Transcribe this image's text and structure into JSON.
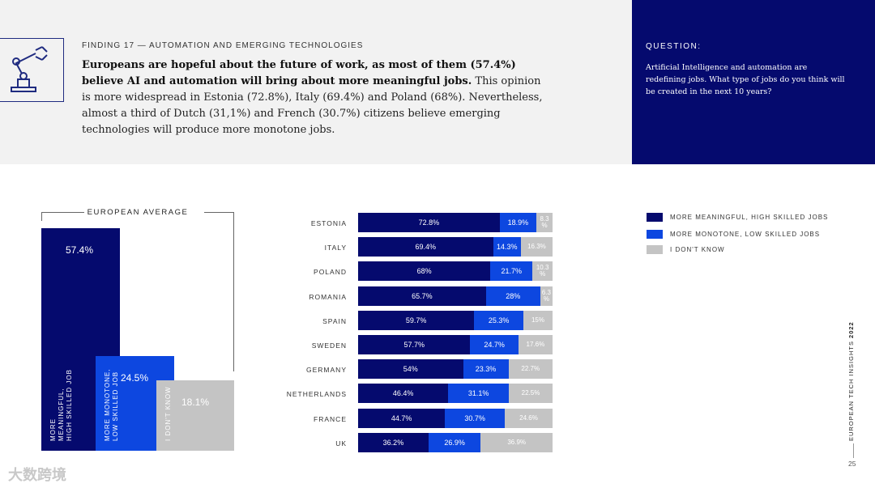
{
  "finding": {
    "kicker": "FINDING 17 — AUTOMATION AND EMERGING TECHNOLOGIES",
    "bold_text": "Europeans are hopeful about the future of work, as most of them (57.4%) believe AI and automation will bring about more meaningful jobs.",
    "body_text": " This opinion is more widespread in Estonia (72.8%), Italy (69.4%) and Poland (68%). Nevertheless, almost a third of Dutch (31,1%) and French (30.7%) citizens believe emerging technologies will produce more monotone jobs.",
    "icon": "robot-arm-icon"
  },
  "question": {
    "label": "QUESTION:",
    "text": "Artificial Intelligence and automation are redefining jobs. What type of jobs do you think will be created in the next 10 years?"
  },
  "colors": {
    "meaningful": "#050a6e",
    "monotone": "#0d47e0",
    "dont_know": "#c4c4c4"
  },
  "chart_data": [
    {
      "type": "bar",
      "title": "EUROPEAN AVERAGE",
      "categories": [
        "MORE MEANINGFUL, HIGH SKILLED JOB",
        "MORE MONOTONE, LOW SKILLED JOB",
        "I DON'T KNOW"
      ],
      "values": [
        57.4,
        24.5,
        18.1
      ],
      "value_labels": [
        "57.4%",
        "24.5%",
        "18.1%"
      ]
    },
    {
      "type": "bar",
      "orientation": "horizontal",
      "stacked": true,
      "categories": [
        "ESTONIA",
        "ITALY",
        "POLAND",
        "ROMANIA",
        "SPAIN",
        "SWEDEN",
        "GERMANY",
        "NETHERLANDS",
        "FRANCE",
        "UK"
      ],
      "series": [
        {
          "name": "MORE MEANINGFUL, HIGH SKILLED JOBS",
          "values": [
            72.8,
            69.4,
            68,
            65.7,
            59.7,
            57.7,
            54,
            46.4,
            44.7,
            36.2
          ],
          "labels": [
            "72.8%",
            "69.4%",
            "68%",
            "65.7%",
            "59.7%",
            "57.7%",
            "54%",
            "46.4%",
            "44.7%",
            "36.2%"
          ]
        },
        {
          "name": "MORE MONOTONE, LOW SKILLED JOBS",
          "values": [
            18.9,
            14.3,
            21.7,
            28,
            25.3,
            24.7,
            23.3,
            31.1,
            30.7,
            26.9
          ],
          "labels": [
            "18.9%",
            "14.3%",
            "21.7%",
            "28%",
            "25.3%",
            "24.7%",
            "23.3%",
            "31.1%",
            "30.7%",
            "26.9%"
          ]
        },
        {
          "name": "I DON'T KNOW",
          "values": [
            8.3,
            16.3,
            10.3,
            6.3,
            15,
            17.6,
            22.7,
            22.5,
            24.6,
            36.9
          ],
          "labels": [
            "8.3 %",
            "16.3%",
            "10.3 %",
            "6.3 %",
            "15%",
            "17.6%",
            "22.7%",
            "22.5%",
            "24.6%",
            "36.9%"
          ]
        }
      ],
      "legend_position": "right"
    }
  ],
  "footer": {
    "side_text_prefix": "EUROPEAN TECH INSIGHTS ",
    "side_text_year": "2022",
    "page_number": "25",
    "watermark": "大数跨境"
  }
}
